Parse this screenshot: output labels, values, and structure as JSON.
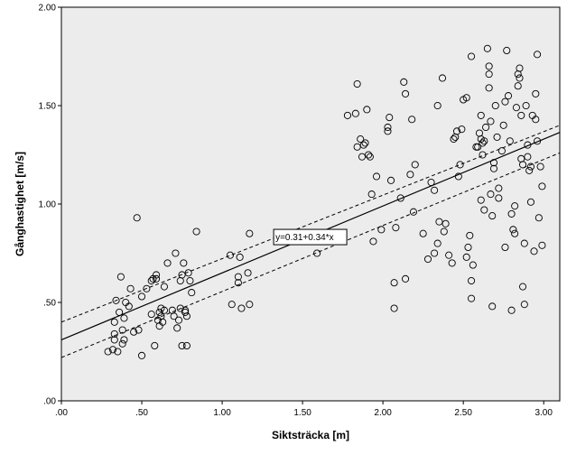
{
  "chart_data": {
    "type": "scatter",
    "title": "",
    "xlabel": "Siktsträcka [m]",
    "ylabel": "Gånghastighet [m/s]",
    "xlim": [
      0,
      3.1
    ],
    "ylim": [
      0,
      2.0
    ],
    "x_ticks": [
      0,
      0.5,
      1.0,
      1.5,
      2.0,
      2.5,
      3.0
    ],
    "x_tick_labels": [
      ".00",
      ".50",
      "1.00",
      "1.50",
      "2.00",
      "2.50",
      "3.00"
    ],
    "y_ticks": [
      0,
      0.5,
      1.0,
      1.5,
      2.0
    ],
    "y_tick_labels": [
      ".00",
      ".50",
      "1.00",
      "1.50",
      "2.00"
    ],
    "grid": false,
    "plot_background": "#ececec",
    "marker": "hollow-circle",
    "fit": {
      "intercept": 0.31,
      "slope": 0.34,
      "label": "y=0.31+0.34*x",
      "label_anchor": [
        1.5,
        0.83
      ]
    },
    "confidence_band": {
      "lower_at_x0": 0.22,
      "lower_at_xmax": 1.26,
      "upper_at_x0": 0.4,
      "upper_at_xmax": 1.4
    },
    "points": [
      [
        0.29,
        0.25
      ],
      [
        0.32,
        0.26
      ],
      [
        0.33,
        0.31
      ],
      [
        0.33,
        0.34
      ],
      [
        0.33,
        0.4
      ],
      [
        0.34,
        0.51
      ],
      [
        0.35,
        0.25
      ],
      [
        0.36,
        0.45
      ],
      [
        0.37,
        0.63
      ],
      [
        0.38,
        0.29
      ],
      [
        0.38,
        0.36
      ],
      [
        0.39,
        0.31
      ],
      [
        0.39,
        0.42
      ],
      [
        0.4,
        0.5
      ],
      [
        0.42,
        0.48
      ],
      [
        0.43,
        0.57
      ],
      [
        0.45,
        0.35
      ],
      [
        0.47,
        0.93
      ],
      [
        0.48,
        0.36
      ],
      [
        0.5,
        0.23
      ],
      [
        0.5,
        0.53
      ],
      [
        0.53,
        0.57
      ],
      [
        0.56,
        0.44
      ],
      [
        0.56,
        0.61
      ],
      [
        0.57,
        0.62
      ],
      [
        0.58,
        0.28
      ],
      [
        0.59,
        0.62
      ],
      [
        0.59,
        0.64
      ],
      [
        0.6,
        0.41
      ],
      [
        0.61,
        0.45
      ],
      [
        0.61,
        0.38
      ],
      [
        0.62,
        0.43
      ],
      [
        0.62,
        0.47
      ],
      [
        0.63,
        0.4
      ],
      [
        0.64,
        0.46
      ],
      [
        0.64,
        0.58
      ],
      [
        0.66,
        0.7
      ],
      [
        0.69,
        0.46
      ],
      [
        0.7,
        0.43
      ],
      [
        0.71,
        0.75
      ],
      [
        0.72,
        0.37
      ],
      [
        0.73,
        0.41
      ],
      [
        0.74,
        0.61
      ],
      [
        0.74,
        0.47
      ],
      [
        0.75,
        0.28
      ],
      [
        0.75,
        0.64
      ],
      [
        0.76,
        0.7
      ],
      [
        0.77,
        0.45
      ],
      [
        0.77,
        0.46
      ],
      [
        0.78,
        0.43
      ],
      [
        0.78,
        0.28
      ],
      [
        0.79,
        0.65
      ],
      [
        0.8,
        0.61
      ],
      [
        0.81,
        0.55
      ],
      [
        0.84,
        0.86
      ],
      [
        1.05,
        0.74
      ],
      [
        1.06,
        0.49
      ],
      [
        1.1,
        0.6
      ],
      [
        1.1,
        0.63
      ],
      [
        1.11,
        0.73
      ],
      [
        1.12,
        0.47
      ],
      [
        1.16,
        0.65
      ],
      [
        1.17,
        0.49
      ],
      [
        1.17,
        0.85
      ],
      [
        1.59,
        0.75
      ],
      [
        1.78,
        1.45
      ],
      [
        1.83,
        1.46
      ],
      [
        1.84,
        1.61
      ],
      [
        1.84,
        1.29
      ],
      [
        1.86,
        1.33
      ],
      [
        1.87,
        1.24
      ],
      [
        1.88,
        1.3
      ],
      [
        1.89,
        1.31
      ],
      [
        1.9,
        1.48
      ],
      [
        1.91,
        1.25
      ],
      [
        1.92,
        1.24
      ],
      [
        1.93,
        1.05
      ],
      [
        1.94,
        0.81
      ],
      [
        1.96,
        1.14
      ],
      [
        1.99,
        0.87
      ],
      [
        2.03,
        1.37
      ],
      [
        2.03,
        1.39
      ],
      [
        2.04,
        1.44
      ],
      [
        2.05,
        1.12
      ],
      [
        2.07,
        0.47
      ],
      [
        2.07,
        0.6
      ],
      [
        2.08,
        0.88
      ],
      [
        2.11,
        1.03
      ],
      [
        2.13,
        1.62
      ],
      [
        2.14,
        1.56
      ],
      [
        2.14,
        0.62
      ],
      [
        2.17,
        1.15
      ],
      [
        2.18,
        1.43
      ],
      [
        2.19,
        0.96
      ],
      [
        2.2,
        1.2
      ],
      [
        2.25,
        0.85
      ],
      [
        2.28,
        0.72
      ],
      [
        2.3,
        1.11
      ],
      [
        2.32,
        0.75
      ],
      [
        2.32,
        1.07
      ],
      [
        2.34,
        1.5
      ],
      [
        2.34,
        0.8
      ],
      [
        2.35,
        0.91
      ],
      [
        2.37,
        1.64
      ],
      [
        2.38,
        0.86
      ],
      [
        2.39,
        0.9
      ],
      [
        2.41,
        0.74
      ],
      [
        2.43,
        0.7
      ],
      [
        2.44,
        1.33
      ],
      [
        2.45,
        1.34
      ],
      [
        2.46,
        1.37
      ],
      [
        2.47,
        1.14
      ],
      [
        2.48,
        1.2
      ],
      [
        2.49,
        1.38
      ],
      [
        2.5,
        1.53
      ],
      [
        2.52,
        1.54
      ],
      [
        2.52,
        0.73
      ],
      [
        2.53,
        0.78
      ],
      [
        2.54,
        0.84
      ],
      [
        2.55,
        0.52
      ],
      [
        2.55,
        0.61
      ],
      [
        2.55,
        1.75
      ],
      [
        2.56,
        0.69
      ],
      [
        2.58,
        1.29
      ],
      [
        2.59,
        1.29
      ],
      [
        2.6,
        1.36
      ],
      [
        2.61,
        1.33
      ],
      [
        2.61,
        1.45
      ],
      [
        2.61,
        1.02
      ],
      [
        2.62,
        1.31
      ],
      [
        2.62,
        1.25
      ],
      [
        2.63,
        1.32
      ],
      [
        2.63,
        0.97
      ],
      [
        2.64,
        1.39
      ],
      [
        2.65,
        1.79
      ],
      [
        2.66,
        1.7
      ],
      [
        2.66,
        1.66
      ],
      [
        2.66,
        1.59
      ],
      [
        2.67,
        1.42
      ],
      [
        2.67,
        1.05
      ],
      [
        2.68,
        0.94
      ],
      [
        2.68,
        0.48
      ],
      [
        2.69,
        1.21
      ],
      [
        2.69,
        1.18
      ],
      [
        2.7,
        1.5
      ],
      [
        2.71,
        1.34
      ],
      [
        2.72,
        1.03
      ],
      [
        2.72,
        1.08
      ],
      [
        2.74,
        1.27
      ],
      [
        2.75,
        1.4
      ],
      [
        2.76,
        1.52
      ],
      [
        2.76,
        0.78
      ],
      [
        2.77,
        1.78
      ],
      [
        2.78,
        1.55
      ],
      [
        2.79,
        1.32
      ],
      [
        2.8,
        0.46
      ],
      [
        2.8,
        0.95
      ],
      [
        2.81,
        0.87
      ],
      [
        2.82,
        0.85
      ],
      [
        2.82,
        0.99
      ],
      [
        2.83,
        1.49
      ],
      [
        2.84,
        1.6
      ],
      [
        2.84,
        1.66
      ],
      [
        2.85,
        1.69
      ],
      [
        2.85,
        1.64
      ],
      [
        2.86,
        1.45
      ],
      [
        2.86,
        1.23
      ],
      [
        2.87,
        1.2
      ],
      [
        2.87,
        0.58
      ],
      [
        2.88,
        0.49
      ],
      [
        2.88,
        0.8
      ],
      [
        2.89,
        1.5
      ],
      [
        2.9,
        1.3
      ],
      [
        2.9,
        1.24
      ],
      [
        2.91,
        1.17
      ],
      [
        2.92,
        1.19
      ],
      [
        2.92,
        1.01
      ],
      [
        2.93,
        1.45
      ],
      [
        2.94,
        0.76
      ],
      [
        2.95,
        1.43
      ],
      [
        2.95,
        1.56
      ],
      [
        2.96,
        1.76
      ],
      [
        2.96,
        1.32
      ],
      [
        2.97,
        0.93
      ],
      [
        2.98,
        1.19
      ],
      [
        2.99,
        0.79
      ],
      [
        2.99,
        1.09
      ]
    ]
  }
}
